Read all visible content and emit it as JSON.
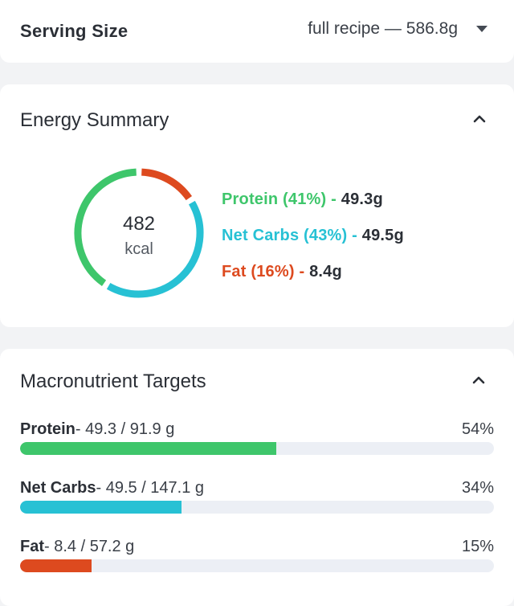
{
  "serving": {
    "label": "Serving Size",
    "value": "full recipe — 586.8g"
  },
  "energy": {
    "title": "Energy Summary",
    "kcal_value": "482",
    "kcal_unit": "kcal",
    "macros": [
      {
        "name_pct": "Protein (41%)",
        "sep": " - ",
        "amount": "49.3g",
        "color": "#3ec66b",
        "fraction": 0.41
      },
      {
        "name_pct": "Net Carbs (43%)",
        "sep": " - ",
        "amount": "49.5g",
        "color": "#27c1d4",
        "fraction": 0.43
      },
      {
        "name_pct": "Fat (16%)",
        "sep": " - ",
        "amount": "8.4g",
        "color": "#dd4a1f",
        "fraction": 0.16
      }
    ]
  },
  "targets": {
    "title": "Macronutrient Targets",
    "rows": [
      {
        "name": "Protein",
        "values": "- 49.3 / 91.9 g",
        "pct": "54%",
        "fraction": 0.54,
        "color": "#3ec66b"
      },
      {
        "name": "Net Carbs",
        "values": "- 49.5 / 147.1 g",
        "pct": "34%",
        "fraction": 0.34,
        "color": "#27c1d4"
      },
      {
        "name": "Fat",
        "values": "- 8.4 / 57.2 g",
        "pct": "15%",
        "fraction": 0.15,
        "color": "#dd4a1f"
      }
    ]
  },
  "icons": {
    "serving_dropdown": "caret-down-icon",
    "energy_collapse": "chevron-up-icon",
    "targets_collapse": "chevron-up-icon"
  }
}
